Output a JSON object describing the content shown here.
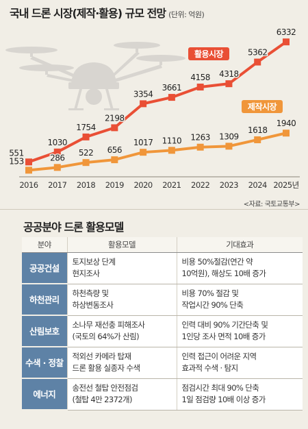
{
  "chart_data": {
    "type": "line",
    "title": "국내 드론 시장(제작·활용) 규모 전망",
    "unit": "(단위: 억원)",
    "x": [
      "2016",
      "2017",
      "2018",
      "2019",
      "2020",
      "2021",
      "2022",
      "2023",
      "2024",
      "2025년"
    ],
    "series": [
      {
        "name": "활용시장",
        "color": "#e94f35",
        "values": [
          551,
          1030,
          1754,
          2198,
          3354,
          3661,
          4158,
          4318,
          5362,
          6332
        ]
      },
      {
        "name": "제작시장",
        "color": "#f0963a",
        "values": [
          153,
          286,
          522,
          656,
          1017,
          1110,
          1263,
          1309,
          1618,
          1940
        ]
      }
    ],
    "ylim": [
      0,
      6700
    ],
    "grid": false,
    "legend": "inline labels",
    "source": "<자료: 국토교통부>"
  },
  "table": {
    "title": "공공분야 드론 활용모델",
    "headers": [
      "분야",
      "활용모델",
      "기대효과"
    ],
    "rows": [
      {
        "category": "공공건설",
        "model": "토지보상 단계\n현지조사",
        "effect": "비용 50%절감(연간 약\n10억원), 해상도 10배 증가"
      },
      {
        "category": "하천관리",
        "model": "하천측량 및\n하상변동조사",
        "effect": "비용 70% 절감 및\n작업시간 90% 단축"
      },
      {
        "category": "산림보호",
        "model": "소나무 재선충 피해조사\n(국토의 64%가 산림)",
        "effect": "인력 대비 90% 기간단축 및\n1인당 조사 면적 10배 증가"
      },
      {
        "category": "수색 · 정찰",
        "model": "적외선 카메라 탑재\n드론 활용 실종자 수색",
        "effect": "인력 접근이 어려운 지역\n효과적 수색 · 탐지"
      },
      {
        "category": "에너지",
        "model": "송전선 철탑 안전점검\n(철탑 4만 2372개)",
        "effect": "점검시간 최대 90% 단축\n1일 점검량 10배 이상 증가"
      }
    ]
  }
}
